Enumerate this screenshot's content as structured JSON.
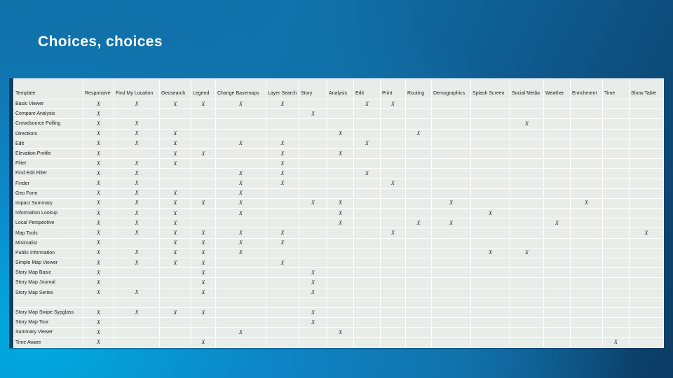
{
  "slide": {
    "title": "Choices, choices"
  },
  "table": {
    "mark": "X",
    "columns": [
      "Template",
      "Responsive",
      "Find My Location",
      "Geosearch",
      "Legend",
      "Change Basemaps",
      "Layer Search",
      "Story",
      "Analysis",
      "Edit",
      "Print",
      "Routing",
      "Demographics",
      "Splash Screen",
      "Social Media",
      "Weather",
      "Enrichment",
      "Time",
      "Show Table"
    ],
    "rows": [
      {
        "template": "Basic Viewer",
        "features": [
          "Responsive",
          "Find My Location",
          "Geosearch",
          "Legend",
          "Change Basemaps",
          "Layer Search",
          "Edit",
          "Print"
        ]
      },
      {
        "template": "Compare Analysis",
        "features": [
          "Responsive",
          "Story"
        ]
      },
      {
        "template": "Crowdsource Polling",
        "features": [
          "Responsive",
          "Find My Location",
          "Social Media"
        ]
      },
      {
        "template": "Directions",
        "features": [
          "Responsive",
          "Find My Location",
          "Geosearch",
          "Analysis",
          "Routing"
        ]
      },
      {
        "template": "Edit",
        "features": [
          "Responsive",
          "Find My Location",
          "Geosearch",
          "Change Basemaps",
          "Layer Search",
          "Edit"
        ]
      },
      {
        "template": "Elevation Profile",
        "features": [
          "Responsive",
          "Geosearch",
          "Legend",
          "Layer Search",
          "Analysis"
        ]
      },
      {
        "template": "Filter",
        "features": [
          "Responsive",
          "Find My Location",
          "Geosearch",
          "Layer Search"
        ]
      },
      {
        "template": "Find Edit Filter",
        "features": [
          "Responsive",
          "Find My Location",
          "Change Basemaps",
          "Layer Search",
          "Edit"
        ]
      },
      {
        "template": "Finder",
        "features": [
          "Responsive",
          "Find My Location",
          "Change Basemaps",
          "Layer Search",
          "Print"
        ]
      },
      {
        "template": "Geo Form",
        "features": [
          "Responsive",
          "Find My Location",
          "Geosearch",
          "Change Basemaps"
        ]
      },
      {
        "template": "Impact Summary",
        "features": [
          "Responsive",
          "Find My Location",
          "Geosearch",
          "Legend",
          "Change Basemaps",
          "Story",
          "Analysis",
          "Demographics",
          "Enrichment"
        ]
      },
      {
        "template": "Information Lookup",
        "features": [
          "Responsive",
          "Find My Location",
          "Geosearch",
          "Change Basemaps",
          "Analysis",
          "Splash Screen"
        ]
      },
      {
        "template": "Local Perspective",
        "features": [
          "Responsive",
          "Find My Location",
          "Geosearch",
          "Analysis",
          "Routing",
          "Demographics",
          "Weather"
        ]
      },
      {
        "template": "Map Tools",
        "features": [
          "Responsive",
          "Find My Location",
          "Geosearch",
          "Legend",
          "Change Basemaps",
          "Layer Search",
          "Print",
          "Show Table"
        ]
      },
      {
        "template": "Minimalist",
        "features": [
          "Responsive",
          "Geosearch",
          "Legend",
          "Change Basemaps",
          "Layer Search"
        ]
      },
      {
        "template": "Public Information",
        "features": [
          "Responsive",
          "Find My Location",
          "Geosearch",
          "Legend",
          "Change Basemaps",
          "Splash Screen",
          "Social Media"
        ]
      },
      {
        "template": "Simple Map Viewer",
        "features": [
          "Responsive",
          "Find My Location",
          "Geosearch",
          "Legend",
          "Layer Search"
        ]
      },
      {
        "template": "Story Map Basic",
        "features": [
          "Responsive",
          "Legend",
          "Story"
        ]
      },
      {
        "template": "Story Map Journal",
        "features": [
          "Responsive",
          "Legend",
          "Story"
        ]
      },
      {
        "template": "Story Map Series",
        "features": [
          "Responsive",
          "Find My Location",
          "Legend",
          "Story"
        ]
      },
      {
        "template": "",
        "features": null,
        "spacer": true
      },
      {
        "template": "Story Map Swipe Sypglass",
        "features": [
          "Responsive",
          "Find My Location",
          "Geosearch",
          "Legend",
          "Story"
        ]
      },
      {
        "template": "Story Map Tour",
        "features": [
          "Responsive",
          "Story"
        ]
      },
      {
        "template": "Summary Viewer",
        "features": [
          "Responsive",
          "Change Basemaps",
          "Analysis"
        ]
      },
      {
        "template": "Time Aware",
        "features": [
          "Responsive",
          "Legend",
          "Time"
        ]
      }
    ]
  }
}
